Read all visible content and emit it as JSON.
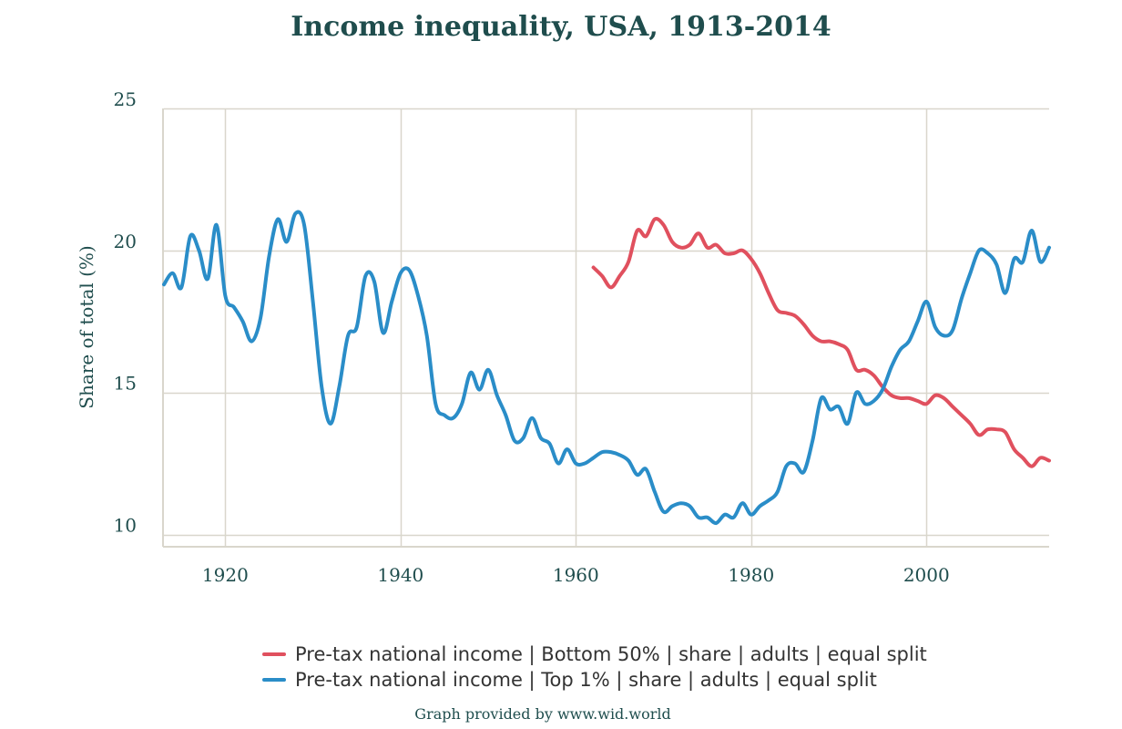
{
  "chart_data": {
    "type": "line",
    "title": "Income inequality, USA, 1913-2014",
    "xlabel": "",
    "ylabel": "Share of total (%)",
    "xlim": [
      1913,
      2014
    ],
    "ylim": [
      9.6,
      25
    ],
    "x_ticks": [
      1920,
      1940,
      1960,
      1980,
      2000
    ],
    "y_ticks": [
      10,
      15,
      20,
      25
    ],
    "grid": true,
    "legend_position": "bottom",
    "series": [
      {
        "name": "Pre-tax national income | Bottom 50% | share | adults | equal split",
        "color": "#e0505e",
        "x": [
          1962,
          1963,
          1964,
          1965,
          1966,
          1967,
          1968,
          1969,
          1970,
          1971,
          1972,
          1973,
          1974,
          1975,
          1976,
          1977,
          1978,
          1979,
          1980,
          1981,
          1982,
          1983,
          1984,
          1985,
          1986,
          1987,
          1988,
          1989,
          1990,
          1991,
          1992,
          1993,
          1994,
          1995,
          1996,
          1997,
          1998,
          1999,
          2000,
          2001,
          2002,
          2003,
          2004,
          2005,
          2006,
          2007,
          2008,
          2009,
          2010,
          2011,
          2012,
          2013,
          2014
        ],
        "y": [
          19.4,
          19.1,
          18.7,
          19.1,
          19.6,
          20.7,
          20.5,
          21.1,
          20.9,
          20.3,
          20.1,
          20.2,
          20.6,
          20.1,
          20.2,
          19.9,
          19.9,
          20.0,
          19.7,
          19.2,
          18.5,
          17.9,
          17.8,
          17.7,
          17.4,
          17.0,
          16.8,
          16.8,
          16.7,
          16.5,
          15.8,
          15.8,
          15.6,
          15.2,
          14.9,
          14.8,
          14.8,
          14.7,
          14.6,
          14.9,
          14.8,
          14.5,
          14.2,
          13.9,
          13.5,
          13.7,
          13.7,
          13.6,
          13.0,
          12.7,
          12.4,
          12.7,
          12.6
        ]
      },
      {
        "name": "Pre-tax national income | Top 1% | share | adults | equal split",
        "color": "#2a8dc8",
        "x": [
          1913,
          1914,
          1915,
          1916,
          1917,
          1918,
          1919,
          1920,
          1921,
          1922,
          1923,
          1924,
          1925,
          1926,
          1927,
          1928,
          1929,
          1930,
          1931,
          1932,
          1933,
          1934,
          1935,
          1936,
          1937,
          1938,
          1939,
          1940,
          1941,
          1942,
          1943,
          1944,
          1945,
          1946,
          1947,
          1948,
          1949,
          1950,
          1951,
          1952,
          1953,
          1954,
          1955,
          1956,
          1957,
          1958,
          1959,
          1960,
          1961,
          1962,
          1963,
          1964,
          1965,
          1966,
          1967,
          1968,
          1969,
          1970,
          1971,
          1972,
          1973,
          1974,
          1975,
          1976,
          1977,
          1978,
          1979,
          1980,
          1981,
          1982,
          1983,
          1984,
          1985,
          1986,
          1987,
          1988,
          1989,
          1990,
          1991,
          1992,
          1993,
          1994,
          1995,
          1996,
          1997,
          1998,
          1999,
          2000,
          2001,
          2002,
          2003,
          2004,
          2005,
          2006,
          2007,
          2008,
          2009,
          2010,
          2011,
          2012,
          2013,
          2014
        ],
        "y": [
          18.8,
          19.2,
          18.7,
          20.5,
          20.0,
          19.0,
          20.9,
          18.4,
          18.0,
          17.5,
          16.8,
          17.6,
          19.8,
          21.1,
          20.3,
          21.3,
          20.9,
          18.2,
          15.2,
          13.9,
          15.2,
          17.0,
          17.3,
          19.1,
          18.9,
          17.1,
          18.2,
          19.2,
          19.3,
          18.4,
          17.0,
          14.6,
          14.2,
          14.1,
          14.6,
          15.7,
          15.1,
          15.8,
          14.9,
          14.2,
          13.3,
          13.4,
          14.1,
          13.4,
          13.2,
          12.5,
          13.0,
          12.5,
          12.5,
          12.7,
          12.9,
          12.9,
          12.8,
          12.6,
          12.1,
          12.3,
          11.5,
          10.8,
          11.0,
          11.1,
          11.0,
          10.6,
          10.6,
          10.4,
          10.7,
          10.6,
          11.1,
          10.7,
          11.0,
          11.2,
          11.5,
          12.4,
          12.5,
          12.2,
          13.3,
          14.8,
          14.4,
          14.5,
          13.9,
          15.0,
          14.6,
          14.7,
          15.1,
          15.9,
          16.5,
          16.8,
          17.5,
          18.2,
          17.3,
          17.0,
          17.2,
          18.3,
          19.2,
          20.0,
          19.9,
          19.5,
          18.5,
          19.7,
          19.6,
          20.7,
          19.6,
          20.1
        ]
      }
    ]
  },
  "credit": "Graph provided by www.wid.world"
}
